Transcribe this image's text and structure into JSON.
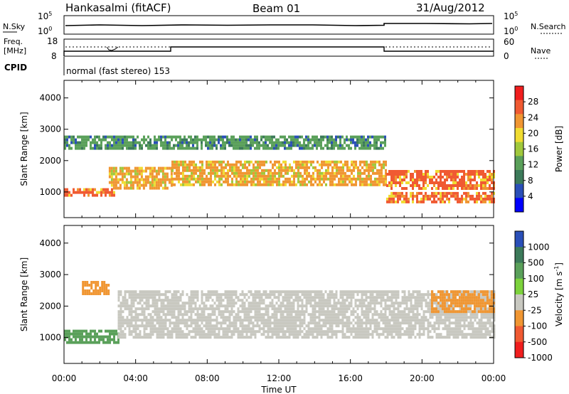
{
  "header": {
    "station": "Hankasalmi (fitACF)",
    "beam": "Beam 01",
    "date": "31/Aug/2012"
  },
  "panels": {
    "nsky": {
      "label": "N.Sky",
      "tick_top": "10^5",
      "tick_bottom": "10^0"
    },
    "nsearch": {
      "label": "N.Search",
      "tick_top": "10^5",
      "tick_bottom": "10^0"
    },
    "freq": {
      "label_line1": "Freq.",
      "label_line2": "[MHz]",
      "tick_top": "18",
      "tick_bottom": "8"
    },
    "nave": {
      "label": "Nave",
      "tick_top": "60",
      "tick_bottom": "0"
    },
    "cpid": {
      "label": "CPID",
      "text": "normal (fast stereo) 153"
    }
  },
  "chart_data": [
    {
      "type": "heatmap",
      "title": "",
      "xlabel": "",
      "ylabel": "Slant Range [km]",
      "x_ticks": [
        "00:00",
        "04:00",
        "08:00",
        "12:00",
        "16:00",
        "20:00",
        "00:00"
      ],
      "y_ticks": [
        "1000",
        "2000",
        "3000",
        "4000"
      ],
      "ylim": [
        180,
        4560
      ],
      "colorbar": {
        "label": "Power [dB]",
        "ticks": [
          "4",
          "8",
          "12",
          "16",
          "20",
          "24",
          "28"
        ],
        "range": [
          0,
          32
        ],
        "colors": [
          "#0000ff",
          "#2a4fb8",
          "#3c7a5a",
          "#5aa05a",
          "#a0c83c",
          "#f0dc32",
          "#f09632",
          "#f05a32",
          "#f01e1e"
        ]
      },
      "bands": [
        {
          "t_start": 0.0,
          "t_end": 2.8,
          "range_low": 880,
          "range_high": 1120,
          "power_db": 28
        },
        {
          "t_start": 2.5,
          "t_end": 6.0,
          "range_low": 1150,
          "range_high": 1800,
          "power_db": 22
        },
        {
          "t_start": 6.0,
          "t_end": 18.0,
          "range_low": 1200,
          "range_high": 2000,
          "power_db": 24
        },
        {
          "t_start": 18.0,
          "t_end": 24.0,
          "range_low": 1100,
          "range_high": 1700,
          "power_db": 26
        },
        {
          "t_start": 18.0,
          "t_end": 24.0,
          "range_low": 700,
          "range_high": 1000,
          "power_db": 26
        },
        {
          "t_start": 0.0,
          "t_end": 18.0,
          "range_low": 2400,
          "range_high": 2800,
          "power_db": 12
        }
      ]
    },
    {
      "type": "heatmap",
      "title": "",
      "xlabel": "Time UT",
      "ylabel": "Slant Range [km]",
      "x_ticks": [
        "00:00",
        "04:00",
        "08:00",
        "12:00",
        "16:00",
        "20:00",
        "00:00"
      ],
      "y_ticks": [
        "1000",
        "2000",
        "3000",
        "4000"
      ],
      "ylim": [
        180,
        4560
      ],
      "colorbar": {
        "label": "Velocity [m s^-1]",
        "ticks": [
          "1000",
          "500",
          "100",
          "25",
          "-25",
          "-100",
          "-500",
          "-1000"
        ],
        "colors": [
          "#2a4fb8",
          "#3c7a5a",
          "#5aa05a",
          "#7cd23c",
          "#c8c8c0",
          "#f09632",
          "#f05a32",
          "#f01e1e"
        ]
      },
      "bands": [
        {
          "t_start": 0.0,
          "t_end": 3.0,
          "range_low": 850,
          "range_high": 1250,
          "velocity": 100
        },
        {
          "t_start": 3.0,
          "t_end": 24.0,
          "range_low": 1000,
          "range_high": 2500,
          "velocity": 0
        },
        {
          "t_start": 20.5,
          "t_end": 24.0,
          "range_low": 1800,
          "range_high": 2500,
          "velocity": -100
        },
        {
          "t_start": 1.0,
          "t_end": 2.5,
          "range_low": 2400,
          "range_high": 2800,
          "velocity": -100
        }
      ]
    }
  ]
}
